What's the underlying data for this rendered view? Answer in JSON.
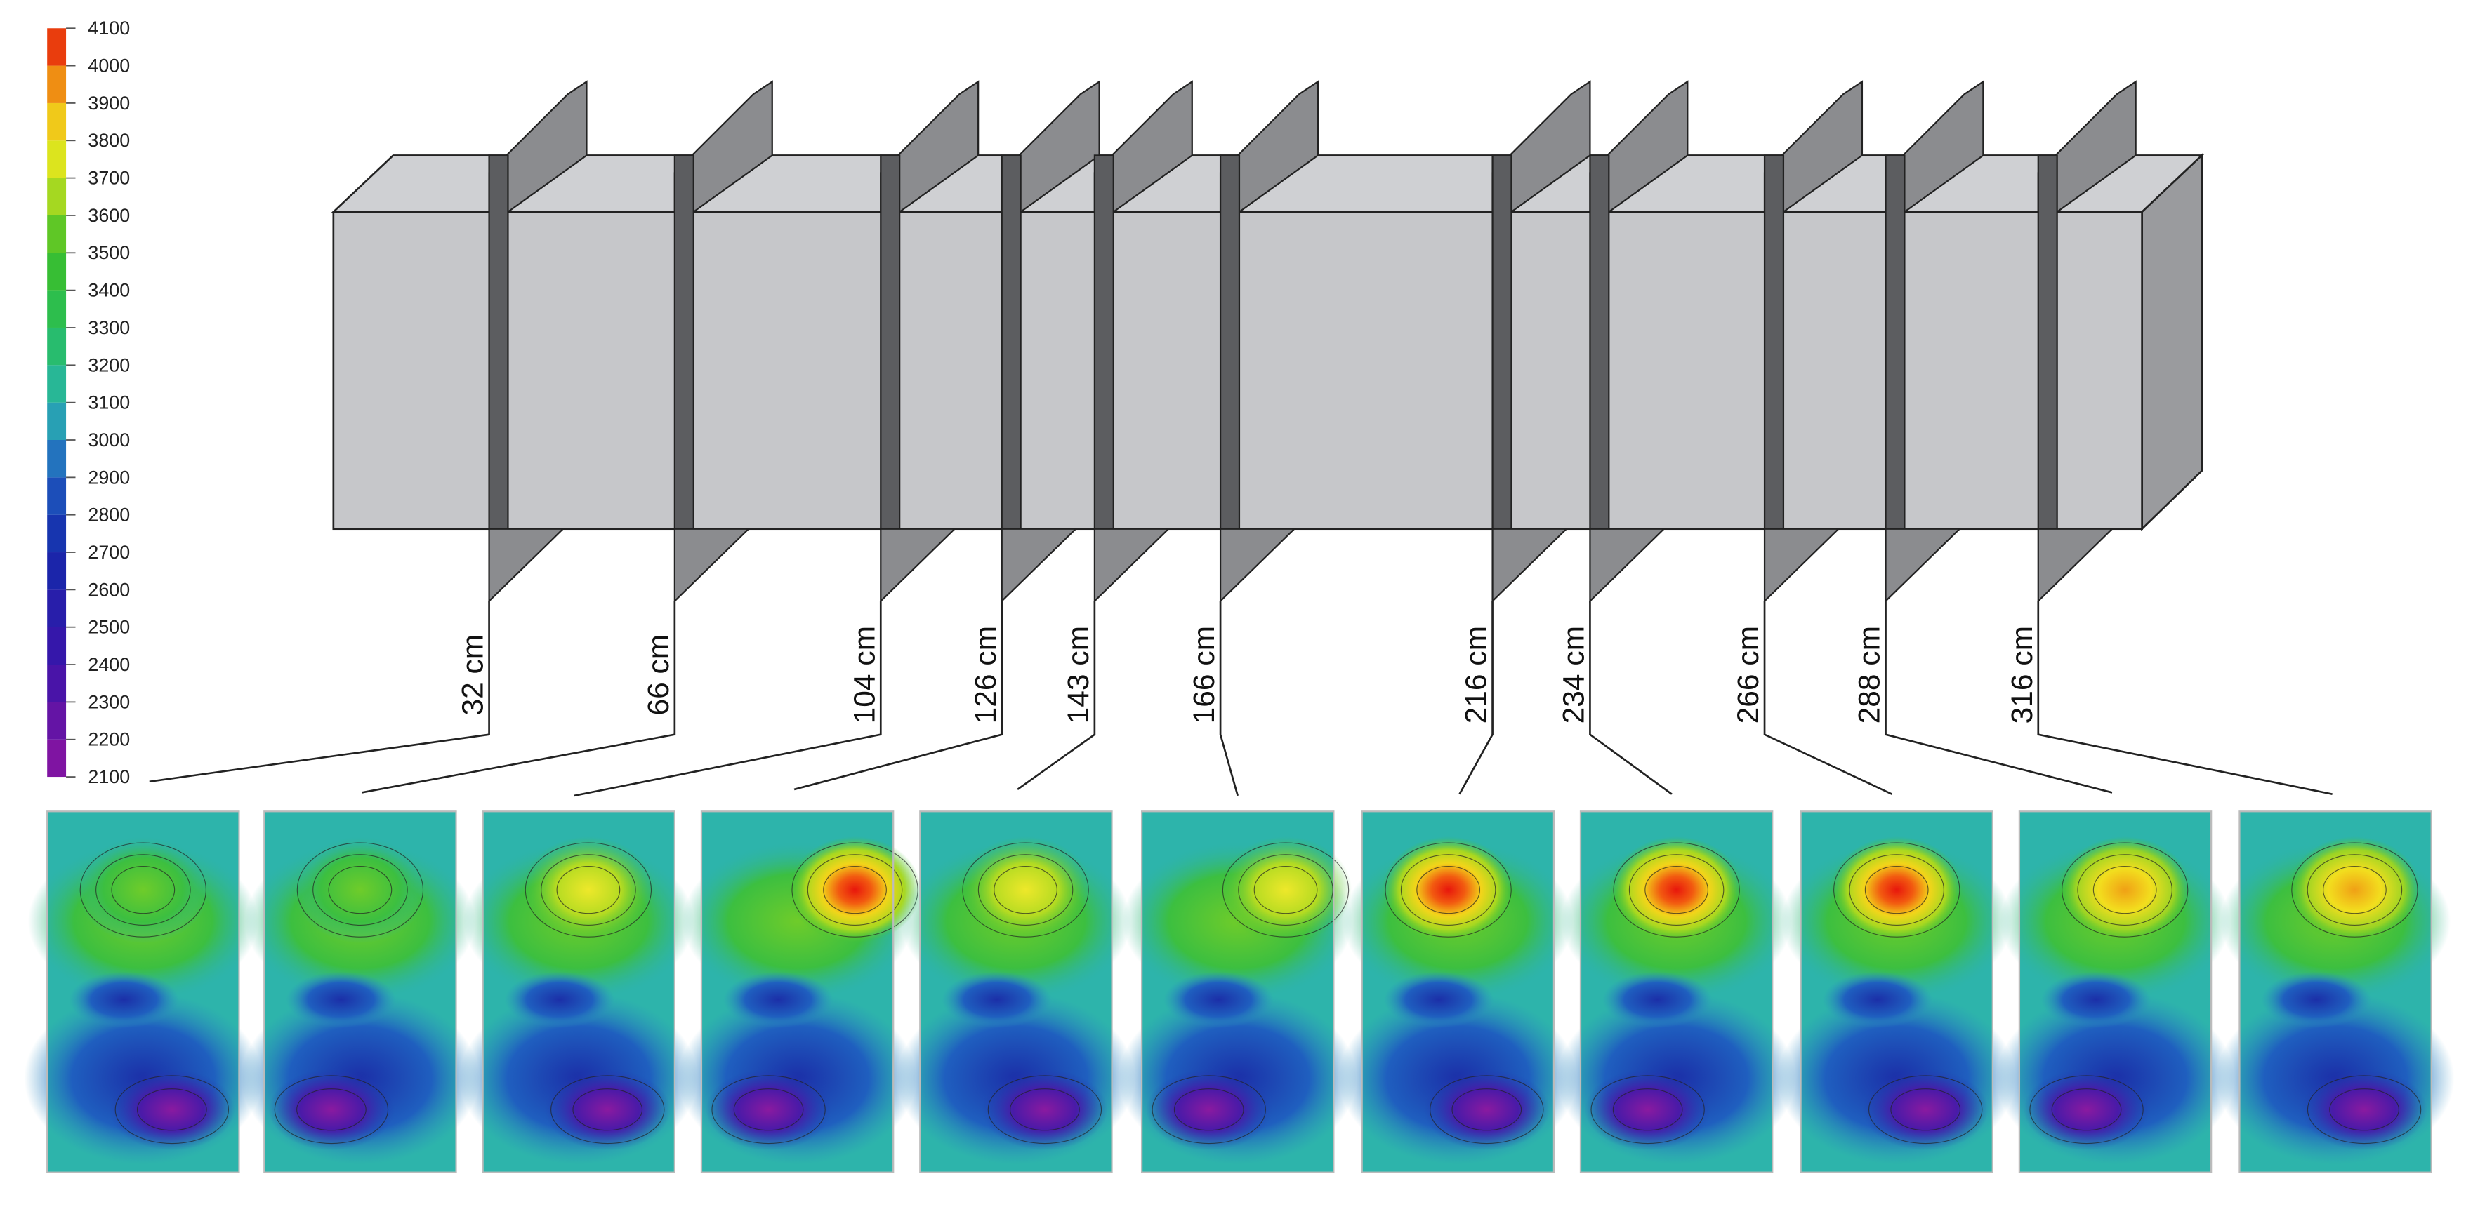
{
  "colorbar": {
    "ticks": [
      2100,
      2200,
      2300,
      2400,
      2500,
      2600,
      2700,
      2800,
      2900,
      3000,
      3100,
      3200,
      3300,
      3400,
      3500,
      3600,
      3700,
      3800,
      3900,
      4000,
      4100
    ]
  },
  "sections": [
    {
      "label": "32 cm"
    },
    {
      "label": "66 cm"
    },
    {
      "label": "104 cm"
    },
    {
      "label": "126 cm"
    },
    {
      "label": "143 cm"
    },
    {
      "label": "166 cm"
    },
    {
      "label": "216 cm"
    },
    {
      "label": "234 cm"
    },
    {
      "label": "266 cm"
    },
    {
      "label": "288 cm"
    },
    {
      "label": "316 cm"
    }
  ]
}
